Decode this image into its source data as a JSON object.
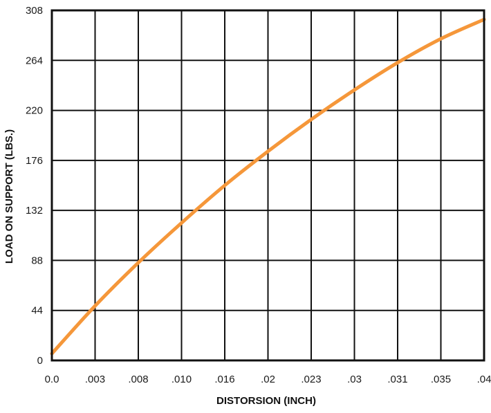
{
  "chart_data": {
    "type": "line",
    "title": "",
    "xlabel": "DISTORSION (INCH)",
    "ylabel": "LOAD ON SUPPORT (LBS.)",
    "x_tick_labels": [
      "0.0",
      ".003",
      ".008",
      ".010",
      ".016",
      ".02",
      ".023",
      ".03",
      ".031",
      ".035",
      ".04"
    ],
    "y_tick_labels": [
      "0",
      "44",
      "88",
      "132",
      "176",
      "220",
      "264",
      "308"
    ],
    "y_tick_values": [
      0,
      44,
      88,
      132,
      176,
      220,
      264,
      308
    ],
    "ylim": [
      0,
      308
    ],
    "grid": true,
    "legend": false,
    "series": [
      {
        "color": "#f5973a",
        "points": [
          {
            "x_index": 0,
            "y": 6
          },
          {
            "x_index": 1,
            "y": 48
          },
          {
            "x_index": 2,
            "y": 86
          },
          {
            "x_index": 3,
            "y": 121
          },
          {
            "x_index": 4,
            "y": 154
          },
          {
            "x_index": 5,
            "y": 184
          },
          {
            "x_index": 6,
            "y": 212
          },
          {
            "x_index": 7,
            "y": 238
          },
          {
            "x_index": 8,
            "y": 262
          },
          {
            "x_index": 9,
            "y": 283
          },
          {
            "x_index": 10,
            "y": 300
          }
        ]
      }
    ]
  }
}
